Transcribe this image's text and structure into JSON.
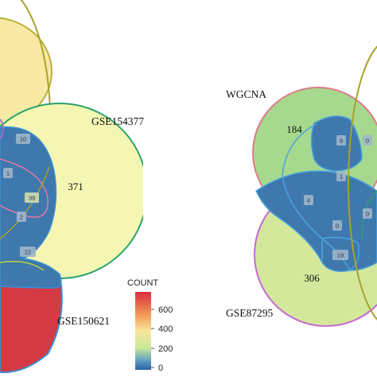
{
  "left_venn": {
    "labels": {
      "gse154377": "GSE154377",
      "gse150621": "GSE150621"
    },
    "counts": {
      "main_yellow": "371",
      "box_a": "10",
      "box_b": "1",
      "box_c": "39",
      "box_d": "2",
      "box_e": "22"
    }
  },
  "right_venn": {
    "labels": {
      "wgcna": "WGCNA",
      "gse87295": "GSE87295"
    },
    "counts": {
      "wgcna_only": "184",
      "gse87295_only": "306",
      "box_a": "9",
      "box_b": "1",
      "box_c": "4",
      "box_d": "0",
      "box_e": "19",
      "box_f": "0"
    }
  },
  "legend": {
    "title": "COUNT",
    "ticks": [
      "600",
      "400",
      "200",
      "0"
    ],
    "gradient_colors": [
      "#d7303f",
      "#f49b59",
      "#f7e69a",
      "#c9e79a",
      "#5fa0c0",
      "#2c62a8"
    ]
  }
}
